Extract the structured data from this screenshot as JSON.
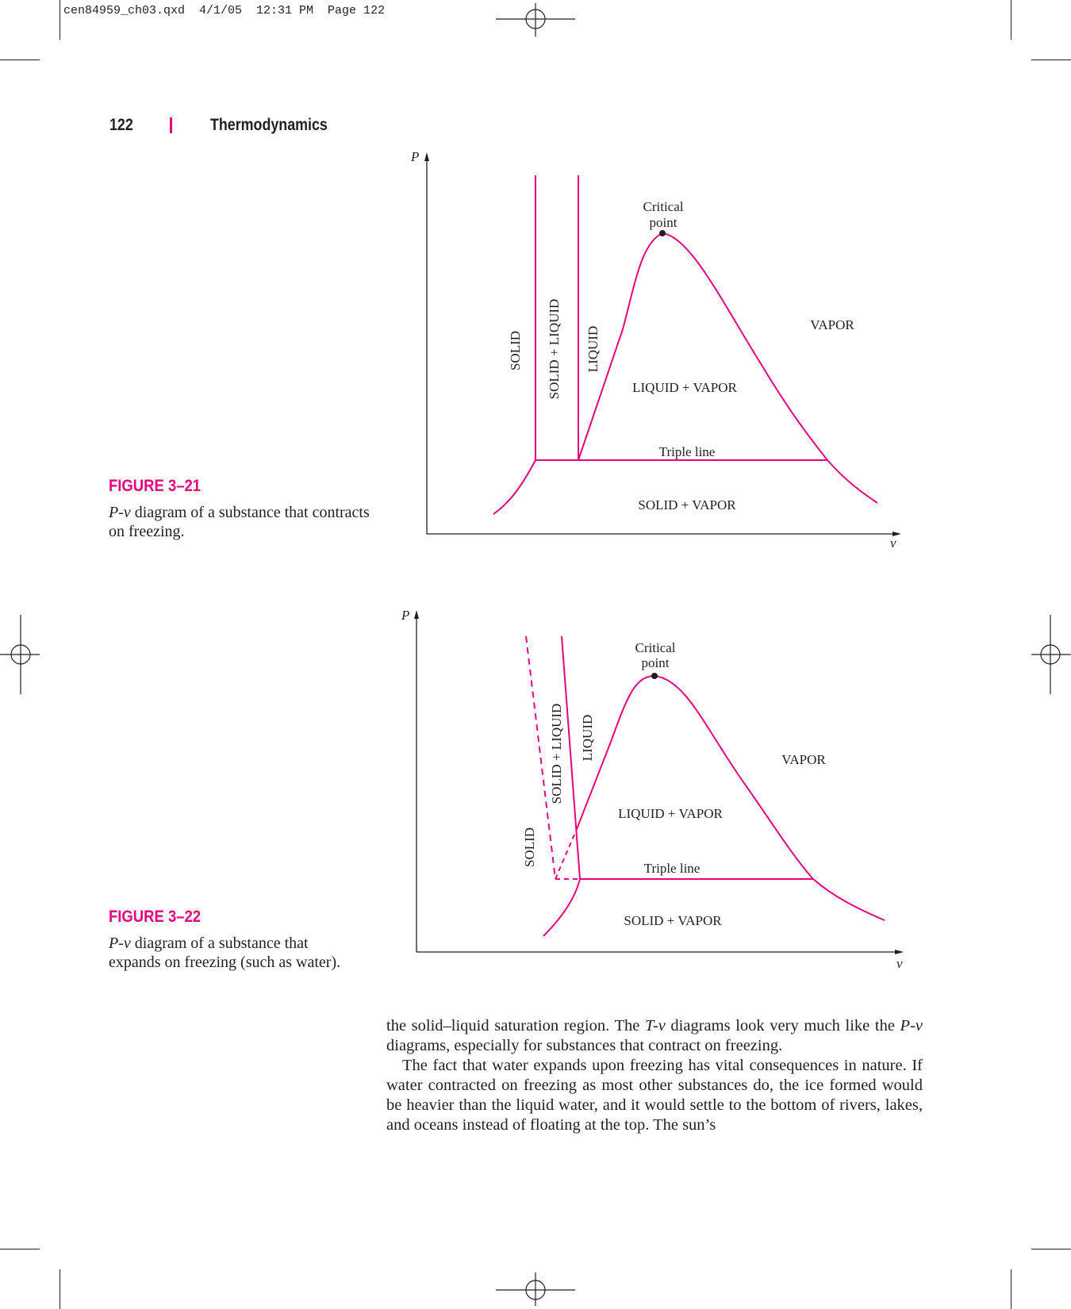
{
  "slug": "cen84959_ch03.qxd  4/1/05  12:31 PM  Page 122",
  "header": {
    "page_number": "122",
    "title": "Thermodynamics"
  },
  "colors": {
    "accent": "#e6007e",
    "ink": "#231f20"
  },
  "figures": [
    {
      "label": "FIGURE 3–21",
      "caption_var_italic": "P-v",
      "caption_rest": " diagram of a substance that contracts on freezing.",
      "labels": {
        "p_axis": "P",
        "v_axis": "v",
        "critical_line1": "Critical",
        "critical_line2": "point",
        "vapor": "VAPOR",
        "liquid_vapor": "LIQUID + VAPOR",
        "triple_line": "Triple line",
        "solid_vapor": "SOLID + VAPOR",
        "solid": "SOLID",
        "solid_liquid": "SOLID + LIQUID",
        "liquid": "LIQUID"
      }
    },
    {
      "label": "FIGURE 3–22",
      "caption_var_italic": "P-v",
      "caption_rest": " diagram of a substance that expands on freezing (such as water).",
      "labels": {
        "p_axis": "P",
        "v_axis": "v",
        "critical_line1": "Critical",
        "critical_line2": "point",
        "vapor": "VAPOR",
        "liquid_vapor": "LIQUID + VAPOR",
        "triple_line": "Triple line",
        "solid_vapor": "SOLID + VAPOR",
        "solid": "SOLID",
        "solid_liquid": "SOLID + LIQUID",
        "liquid": "LIQUID"
      }
    }
  ],
  "body": {
    "p1_part1": "the solid–liquid saturation region. The ",
    "p1_tv": "T-v",
    "p1_part2": " diagrams look very much like the ",
    "p1_pv": "P-v",
    "p1_part3": " diagrams, especially for substances that contract on freezing.",
    "p2": "The fact that water expands upon freezing has vital consequences in nature. If water contracted on freezing as most other substances do, the ice formed would be heavier than the liquid water, and it would settle to the bottom of rivers, lakes, and oceans instead of floating at the top. The sun’s"
  }
}
